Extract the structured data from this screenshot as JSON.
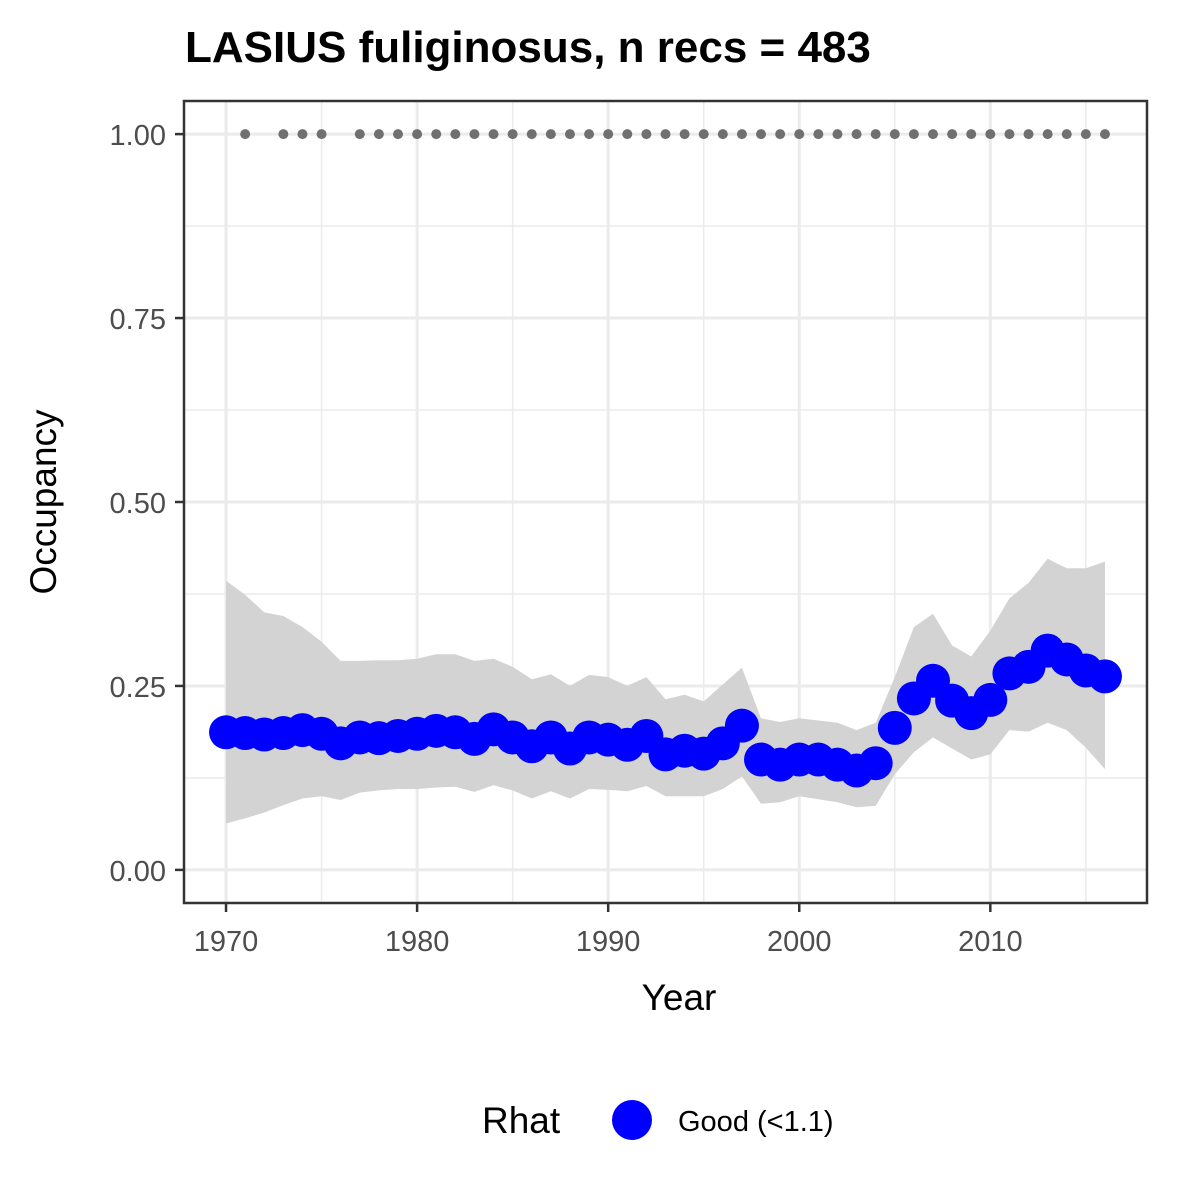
{
  "chart_data": {
    "type": "line",
    "title": "LASIUS fuliginosus, n recs = 483",
    "xlabel": "Year",
    "ylabel": "Occupancy",
    "xlim": [
      1967.8,
      2018.2
    ],
    "ylim": [
      -0.045,
      1.045
    ],
    "x_ticks": [
      1970,
      1980,
      1990,
      2000,
      2010
    ],
    "x_tick_labels": [
      "1970",
      "1980",
      "1990",
      "2000",
      "2010"
    ],
    "y_ticks": [
      0,
      0.25,
      0.5,
      0.75,
      1.0
    ],
    "y_tick_labels": [
      "0.00",
      "0.25",
      "0.50",
      "0.75",
      "1.00"
    ],
    "grid": true,
    "legend": {
      "position": "bottom",
      "title": "Rhat",
      "items": [
        {
          "label": "Good (<1.1)",
          "color": "#0000ff"
        }
      ]
    },
    "colors": {
      "points": "#0000ff",
      "ribbon": "#d3d3d3",
      "records": "#707070",
      "grid": "#ebebeb",
      "panel_border": "#333333"
    },
    "series": [
      {
        "x": [
          1970,
          1971,
          1972,
          1973,
          1974,
          1975,
          1976,
          1977,
          1978,
          1979,
          1980,
          1981,
          1982,
          1983,
          1984,
          1985,
          1986,
          1987,
          1988,
          1989,
          1990,
          1991,
          1992,
          1993,
          1994,
          1995,
          1996,
          1997,
          1998,
          1999,
          2000,
          2001,
          2002,
          2003,
          2004,
          2005,
          2006,
          2007,
          2008,
          2009,
          2010,
          2011,
          2012,
          2013,
          2014,
          2015,
          2016
        ],
        "values": [
          0.187,
          0.186,
          0.184,
          0.186,
          0.19,
          0.185,
          0.172,
          0.18,
          0.179,
          0.182,
          0.185,
          0.189,
          0.187,
          0.178,
          0.191,
          0.18,
          0.168,
          0.18,
          0.165,
          0.18,
          0.177,
          0.17,
          0.182,
          0.157,
          0.162,
          0.158,
          0.172,
          0.196,
          0.15,
          0.143,
          0.15,
          0.15,
          0.143,
          0.135,
          0.145,
          0.193,
          0.233,
          0.257,
          0.23,
          0.213,
          0.231,
          0.267,
          0.276,
          0.298,
          0.286,
          0.271,
          0.263
        ],
        "lower": [
          0.063,
          0.07,
          0.078,
          0.088,
          0.097,
          0.1,
          0.095,
          0.105,
          0.108,
          0.11,
          0.11,
          0.112,
          0.113,
          0.106,
          0.115,
          0.108,
          0.097,
          0.107,
          0.097,
          0.11,
          0.109,
          0.107,
          0.114,
          0.1,
          0.1,
          0.1,
          0.11,
          0.127,
          0.09,
          0.092,
          0.1,
          0.096,
          0.092,
          0.085,
          0.087,
          0.13,
          0.16,
          0.18,
          0.165,
          0.15,
          0.157,
          0.19,
          0.188,
          0.2,
          0.19,
          0.166,
          0.137
        ],
        "upper": [
          0.393,
          0.374,
          0.35,
          0.345,
          0.33,
          0.31,
          0.284,
          0.284,
          0.285,
          0.285,
          0.287,
          0.293,
          0.293,
          0.284,
          0.287,
          0.276,
          0.259,
          0.266,
          0.25,
          0.265,
          0.262,
          0.25,
          0.262,
          0.232,
          0.238,
          0.229,
          0.252,
          0.275,
          0.206,
          0.201,
          0.206,
          0.203,
          0.2,
          0.19,
          0.2,
          0.262,
          0.33,
          0.348,
          0.305,
          0.29,
          0.325,
          0.369,
          0.39,
          0.423,
          0.41,
          0.41,
          0.419
        ]
      }
    ],
    "record_years": [
      1971,
      1973,
      1974,
      1975,
      1977,
      1978,
      1979,
      1980,
      1981,
      1982,
      1983,
      1984,
      1985,
      1986,
      1987,
      1988,
      1989,
      1990,
      1991,
      1992,
      1993,
      1994,
      1995,
      1996,
      1997,
      1998,
      1999,
      2000,
      2001,
      2002,
      2003,
      2004,
      2005,
      2006,
      2007,
      2008,
      2009,
      2010,
      2011,
      2012,
      2013,
      2014,
      2015,
      2016
    ],
    "record_value": 1.0
  }
}
